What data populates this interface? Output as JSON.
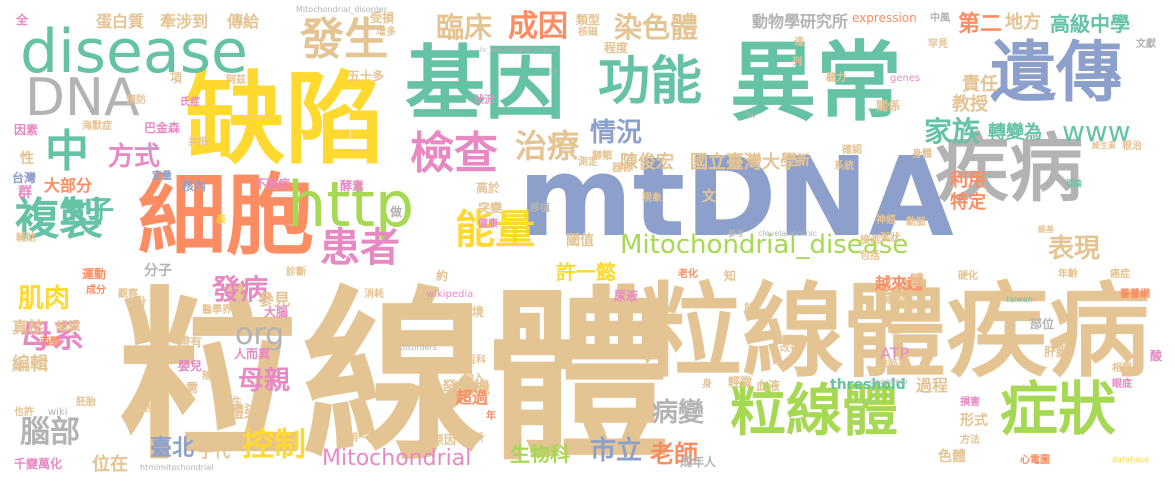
{
  "palette": {
    "tan": "#e5c494",
    "yellow": "#ffd92f",
    "teal": "#66c2a5",
    "orange": "#fc8d62",
    "blue": "#8da0cb",
    "pink": "#e78ac3",
    "green": "#a6d854",
    "gray": "#b3b3b3"
  },
  "words": {
    "w01": "粒線體",
    "w02": "粒線體疾病",
    "w03": "mtDNA",
    "w04": "異常",
    "w05": "缺陷",
    "w06": "基因",
    "w07": "細胞",
    "w08": "遺傳",
    "w09": "疾病",
    "w10": "disease",
    "w11": "DNA",
    "w12": "http",
    "w13": "功能",
    "w14": "粒線體",
    "w15": "症狀",
    "w16": "發生",
    "w17": "檢查",
    "w18": "能量",
    "w19": "複製",
    "w20": "患者",
    "w21": "中",
    "w22": "Mitochondrial_disease",
    "w23": "臨床",
    "w24": "成因",
    "w25": "染色體",
    "w26": "治療",
    "w27": "情況",
    "w28": "方式",
    "w29": "家族",
    "w30": "www",
    "w31": "表現",
    "w32": "發病",
    "w33": "母系",
    "w34": "肌肉",
    "w35": "女子",
    "w36": "腦部",
    "w37": "控制",
    "w38": "母親",
    "w39": "org",
    "w40": "病變",
    "w41": "Mitochondrial",
    "w42": "市立",
    "w43": "老師",
    "w44": "生物科",
    "w45": "陳俊宏",
    "w46": "國立臺灣大學",
    "w47": "高級中學",
    "w48": "地方",
    "w49": "第二",
    "w50": "責任",
    "w51": "教授",
    "w52": "轉變為",
    "w53": "利用",
    "w54": "特定",
    "w55": "許一懿",
    "w56": "越來越",
    "w57": "動物學研究所",
    "w58": "牽涉到",
    "w59": "傳給",
    "w60": "蛋白質",
    "w61": "大部分",
    "w62": "臺北",
    "w63": "子代",
    "w64": "位在",
    "w65": "參見",
    "w66": "體染",
    "w67": "編輯",
    "w68": "真核",
    "w69": "threshold",
    "w70": "ATP",
    "w71": "過程",
    "w72": "食物",
    "w73": "發電機",
    "w74": "超過",
    "w75": "分子",
    "w76": "閾值",
    "w77": "核內",
    "w78": "expression",
    "w79": "Mitochondrial_disorder",
    "w80": "高於",
    "w81": "突變",
    "w82": "五十多",
    "w83": "類型",
    "w84": "核磁",
    "w85": "程度",
    "w86": "受損",
    "w87": "增多",
    "w88": "全",
    "w89": "中風",
    "w90": "罕見",
    "w91": "文獻",
    "w92": "en",
    "w93": "tw",
    "w94": "genes",
    "w95": "聽力",
    "w96": "阿茲",
    "w97": "氏症",
    "w98": "巴金森",
    "w99": "海默症",
    "w100": "因素",
    "w101": "預防",
    "w102": "共振",
    "w103": "性",
    "w104": "台灣",
    "w105": "定量",
    "w106": "群",
    "w107": "輔助",
    "w108": "不耐症",
    "w109": "酵素",
    "w110": "移植",
    "w111": "健康",
    "w112": "做",
    "w113": "表",
    "w114": "運動",
    "w115": "成分",
    "w116": "觀察",
    "w117": "份",
    "w118": "組織",
    "w119": "丙酮",
    "w120": "醫學界",
    "w121": "大腦",
    "w122": "帶有",
    "w123": "人而異",
    "w124": "嬰兒",
    "w125": "隨機",
    "w126": "需",
    "w127": "新生",
    "w128": "生活",
    "w129": "胚胎",
    "w130": "也許",
    "w131": "wiki",
    "w132": "千變萬化",
    "w133": "htmlmitochondrial",
    "w134": "朝一日",
    "w135": "原因",
    "w136": "分析",
    "w137": "年",
    "w138": "成年人",
    "w139": "納入",
    "w140": "百科",
    "w141": "環境",
    "w142": "尿液",
    "w143": "wikipedia",
    "w144": "消耗",
    "w145": "約",
    "w146": "診斷",
    "w147": "disorders",
    "w148": "老化",
    "w149": "知",
    "w150": "前",
    "w151": "改善",
    "w152": "輕微",
    "w153": "血液",
    "w154": "身",
    "w155": "genehelp",
    "w156": "缺陷率",
    "w157": "肝臟",
    "w158": "僅",
    "w159": "部位",
    "w160": "相關",
    "w161": "眼底",
    "w162": "損害",
    "w163": "形式",
    "w164": "方法",
    "w165": "色體",
    "w166": "心電圖",
    "w167": "database",
    "w168": "硬化",
    "w169": "年齡",
    "w170": "癌症",
    "w171": "薔薔網",
    "w172": "taiwan",
    "w173": "包括",
    "w174": "檢測",
    "w175": "參考",
    "w176": "clevelandclinic",
    "w177": "粥狀",
    "w178": "動脈",
    "w179": "維基",
    "w180": "神經",
    "w181": "理論",
    "w182": "系統",
    "w183": "確認",
    "w184": "關係",
    "w185": "身體",
    "w186": "根治",
    "w187": "維生素",
    "w188": "器官",
    "w189": "測定",
    "w190": "歸類",
    "w191": "現象",
    "w192": "新",
    "w193": "文",
    "w194": "列",
    "w195": "達",
    "w196": "狀況",
    "w197": "hc_Mitochondrial_Disease",
    "w198": "體",
    "w199": "酸",
    "w200": "項"
  }
}
